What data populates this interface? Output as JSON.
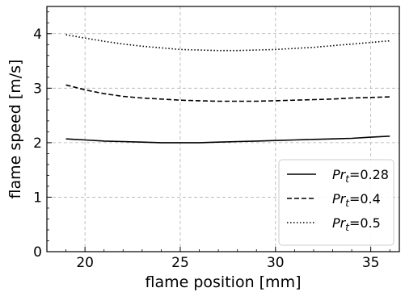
{
  "chart_data": {
    "type": "line",
    "title": "",
    "xlabel": "flame position [mm]",
    "ylabel": "flame speed [m/s]",
    "xlim": [
      18,
      36.5
    ],
    "ylim": [
      0,
      4.5
    ],
    "xticks": [
      20,
      25,
      30,
      35
    ],
    "yticks": [
      0,
      1,
      2,
      3,
      4
    ],
    "grid": true,
    "legend_position": "bottom-right",
    "series": [
      {
        "name": "Pr_t=0.28",
        "legend_symbol": "Pr",
        "legend_subscript": "t",
        "legend_value": "=0.28",
        "linestyle": "solid",
        "x": [
          19,
          20,
          21,
          22,
          23,
          24,
          25,
          26,
          27,
          28,
          29,
          30,
          31,
          32,
          33,
          34,
          35,
          36
        ],
        "y": [
          2.07,
          2.05,
          2.03,
          2.02,
          2.01,
          2.0,
          2.0,
          2.0,
          2.01,
          2.02,
          2.03,
          2.04,
          2.05,
          2.06,
          2.07,
          2.08,
          2.1,
          2.12
        ]
      },
      {
        "name": "Pr_t=0.4",
        "legend_symbol": "Pr",
        "legend_subscript": "t",
        "legend_value": "=0.4",
        "linestyle": "dashed",
        "x": [
          19,
          20,
          21,
          22,
          23,
          24,
          25,
          26,
          27,
          28,
          29,
          30,
          31,
          32,
          33,
          34,
          35,
          36
        ],
        "y": [
          3.06,
          2.97,
          2.9,
          2.85,
          2.82,
          2.8,
          2.78,
          2.77,
          2.76,
          2.76,
          2.76,
          2.77,
          2.78,
          2.79,
          2.8,
          2.82,
          2.83,
          2.84
        ]
      },
      {
        "name": "Pr_t=0.5",
        "legend_symbol": "Pr",
        "legend_subscript": "t",
        "legend_value": "=0.5",
        "linestyle": "dotted",
        "x": [
          19,
          20,
          21,
          22,
          23,
          24,
          25,
          26,
          27,
          28,
          29,
          30,
          31,
          32,
          33,
          34,
          35,
          36
        ],
        "y": [
          3.98,
          3.92,
          3.86,
          3.81,
          3.77,
          3.74,
          3.71,
          3.7,
          3.69,
          3.69,
          3.7,
          3.71,
          3.73,
          3.75,
          3.78,
          3.81,
          3.84,
          3.87
        ]
      }
    ]
  }
}
